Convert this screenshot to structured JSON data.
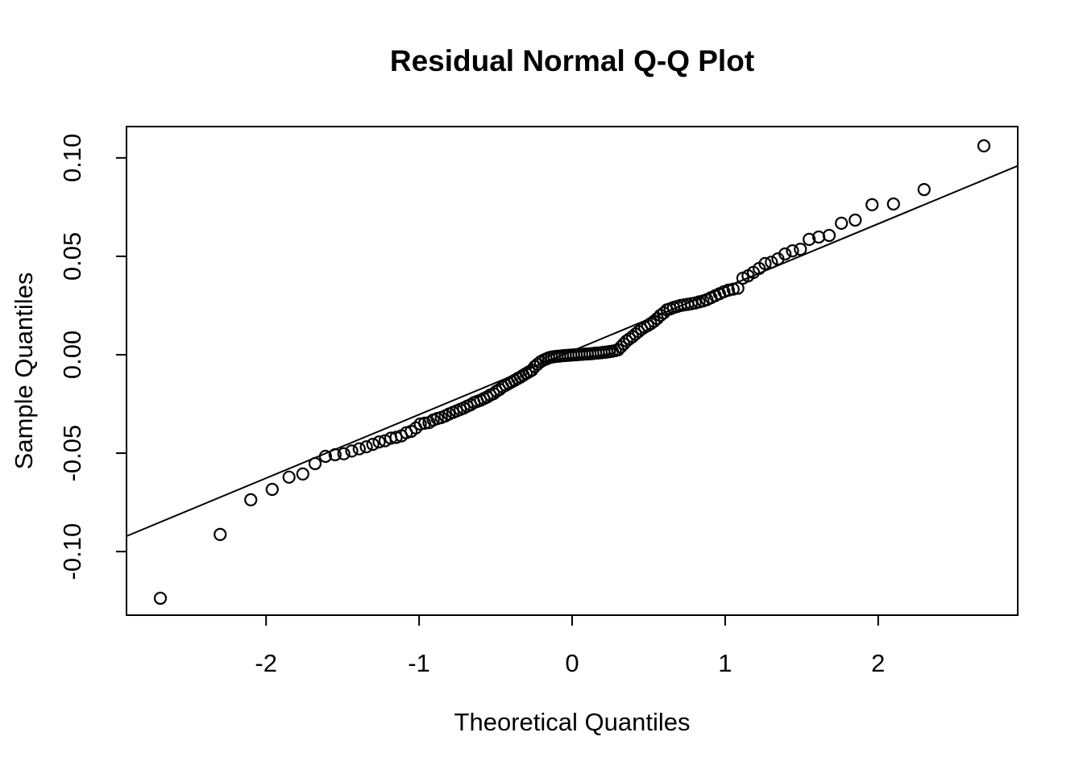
{
  "figure": {
    "background_color": "#ffffff",
    "foreground_color": "#000000"
  },
  "chart_data": {
    "type": "scatter",
    "title": "Residual Normal Q-Q Plot",
    "xlabel": "Theoretical Quantiles",
    "ylabel": "Sample Quantiles",
    "grid": false,
    "legend": "none",
    "marker": "open-circle",
    "xlim": [
      -2.912,
      2.912
    ],
    "ylim": [
      -0.1323,
      0.1159
    ],
    "x_ticks": {
      "values": [
        -2,
        -1,
        0,
        1,
        2
      ],
      "labels": [
        "-2",
        "-1",
        "0",
        "1",
        "2"
      ]
    },
    "y_ticks": {
      "values": [
        -0.1,
        -0.05,
        0.0,
        0.05,
        0.1
      ],
      "labels": [
        "-0.10",
        "-0.05",
        "0.00",
        "0.05",
        "0.10"
      ]
    },
    "ref_line": {
      "intercept": 0.0019,
      "slope": 0.0323
    },
    "points": [
      [
        -2.691,
        -0.1237
      ],
      [
        -2.3,
        -0.0913
      ],
      [
        -2.1,
        -0.0737
      ],
      [
        -1.96,
        -0.0684
      ],
      [
        -1.85,
        -0.0622
      ],
      [
        -1.76,
        -0.0606
      ],
      [
        -1.68,
        -0.0553
      ],
      [
        -1.612,
        -0.0516
      ],
      [
        -1.549,
        -0.0508
      ],
      [
        -1.492,
        -0.0503
      ],
      [
        -1.44,
        -0.0489
      ],
      [
        -1.391,
        -0.0478
      ],
      [
        -1.345,
        -0.0468
      ],
      [
        -1.302,
        -0.0455
      ],
      [
        -1.261,
        -0.0443
      ],
      [
        -1.222,
        -0.0437
      ],
      [
        -1.185,
        -0.0424
      ],
      [
        -1.15,
        -0.042
      ],
      [
        -1.116,
        -0.0412
      ],
      [
        -1.083,
        -0.0396
      ],
      [
        -1.052,
        -0.0389
      ],
      [
        -1.021,
        -0.0372
      ],
      [
        -0.992,
        -0.0352
      ],
      [
        -0.963,
        -0.0348
      ],
      [
        -0.935,
        -0.0345
      ],
      [
        -0.908,
        -0.0332
      ],
      [
        -0.881,
        -0.0324
      ],
      [
        -0.855,
        -0.0319
      ],
      [
        -0.829,
        -0.0311
      ],
      [
        -0.804,
        -0.0301
      ],
      [
        -0.779,
        -0.0293
      ],
      [
        -0.755,
        -0.0285
      ],
      [
        -0.732,
        -0.0278
      ],
      [
        -0.709,
        -0.0271
      ],
      [
        -0.686,
        -0.0262
      ],
      [
        -0.663,
        -0.0254
      ],
      [
        -0.641,
        -0.0243
      ],
      [
        -0.619,
        -0.0237
      ],
      [
        -0.598,
        -0.0231
      ],
      [
        -0.577,
        -0.0223
      ],
      [
        -0.556,
        -0.0215
      ],
      [
        -0.535,
        -0.0205
      ],
      [
        -0.514,
        -0.0198
      ],
      [
        -0.494,
        -0.0185
      ],
      [
        -0.474,
        -0.0176
      ],
      [
        -0.454,
        -0.0163
      ],
      [
        -0.434,
        -0.0155
      ],
      [
        -0.414,
        -0.0146
      ],
      [
        -0.395,
        -0.0138
      ],
      [
        -0.375,
        -0.013
      ],
      [
        -0.356,
        -0.0121
      ],
      [
        -0.337,
        -0.0113
      ],
      [
        -0.319,
        -0.0104
      ],
      [
        -0.3,
        -0.0095
      ],
      [
        -0.281,
        -0.0087
      ],
      [
        -0.263,
        -0.0078
      ],
      [
        -0.244,
        -0.006
      ],
      [
        -0.226,
        -0.0048
      ],
      [
        -0.207,
        -0.0036
      ],
      [
        -0.189,
        -0.0028
      ],
      [
        -0.171,
        -0.0022
      ],
      [
        -0.153,
        -0.0016
      ],
      [
        -0.135,
        -0.0012
      ],
      [
        -0.117,
        -0.001
      ],
      [
        -0.099,
        -0.0008
      ],
      [
        -0.081,
        -0.0007
      ],
      [
        -0.063,
        -0.0005
      ],
      [
        -0.045,
        -0.0004
      ],
      [
        -0.027,
        -0.0003
      ],
      [
        -0.009,
        -0.0002
      ],
      [
        0.009,
        -0.0001
      ],
      [
        0.027,
        0.0
      ],
      [
        0.045,
        0.0001
      ],
      [
        0.063,
        0.0002
      ],
      [
        0.081,
        0.0003
      ],
      [
        0.099,
        0.0004
      ],
      [
        0.117,
        0.0005
      ],
      [
        0.135,
        0.0006
      ],
      [
        0.153,
        0.0008
      ],
      [
        0.171,
        0.0009
      ],
      [
        0.189,
        0.001
      ],
      [
        0.207,
        0.0012
      ],
      [
        0.226,
        0.0014
      ],
      [
        0.244,
        0.0016
      ],
      [
        0.263,
        0.0018
      ],
      [
        0.281,
        0.0021
      ],
      [
        0.3,
        0.0025
      ],
      [
        0.319,
        0.004
      ],
      [
        0.337,
        0.0055
      ],
      [
        0.356,
        0.007
      ],
      [
        0.375,
        0.0081
      ],
      [
        0.395,
        0.0092
      ],
      [
        0.414,
        0.0105
      ],
      [
        0.434,
        0.0118
      ],
      [
        0.454,
        0.013
      ],
      [
        0.474,
        0.014
      ],
      [
        0.494,
        0.0148
      ],
      [
        0.514,
        0.0158
      ],
      [
        0.535,
        0.017
      ],
      [
        0.556,
        0.0184
      ],
      [
        0.577,
        0.02
      ],
      [
        0.598,
        0.0212
      ],
      [
        0.619,
        0.0228
      ],
      [
        0.641,
        0.0233
      ],
      [
        0.663,
        0.024
      ],
      [
        0.686,
        0.0245
      ],
      [
        0.709,
        0.025
      ],
      [
        0.732,
        0.0253
      ],
      [
        0.755,
        0.0256
      ],
      [
        0.779,
        0.0259
      ],
      [
        0.804,
        0.0263
      ],
      [
        0.829,
        0.0268
      ],
      [
        0.855,
        0.0273
      ],
      [
        0.881,
        0.028
      ],
      [
        0.908,
        0.029
      ],
      [
        0.935,
        0.03
      ],
      [
        0.963,
        0.031
      ],
      [
        0.992,
        0.032
      ],
      [
        1.021,
        0.0328
      ],
      [
        1.052,
        0.0333
      ],
      [
        1.083,
        0.0338
      ],
      [
        1.116,
        0.0389
      ],
      [
        1.15,
        0.0401
      ],
      [
        1.185,
        0.0418
      ],
      [
        1.222,
        0.0438
      ],
      [
        1.261,
        0.0463
      ],
      [
        1.302,
        0.047
      ],
      [
        1.345,
        0.0487
      ],
      [
        1.391,
        0.0512
      ],
      [
        1.44,
        0.0528
      ],
      [
        1.492,
        0.0536
      ],
      [
        1.549,
        0.0586
      ],
      [
        1.612,
        0.0598
      ],
      [
        1.68,
        0.0606
      ],
      [
        1.76,
        0.0668
      ],
      [
        1.85,
        0.0684
      ],
      [
        1.96,
        0.0762
      ],
      [
        2.1,
        0.0766
      ],
      [
        2.3,
        0.0839
      ],
      [
        2.691,
        0.1061
      ]
    ]
  }
}
